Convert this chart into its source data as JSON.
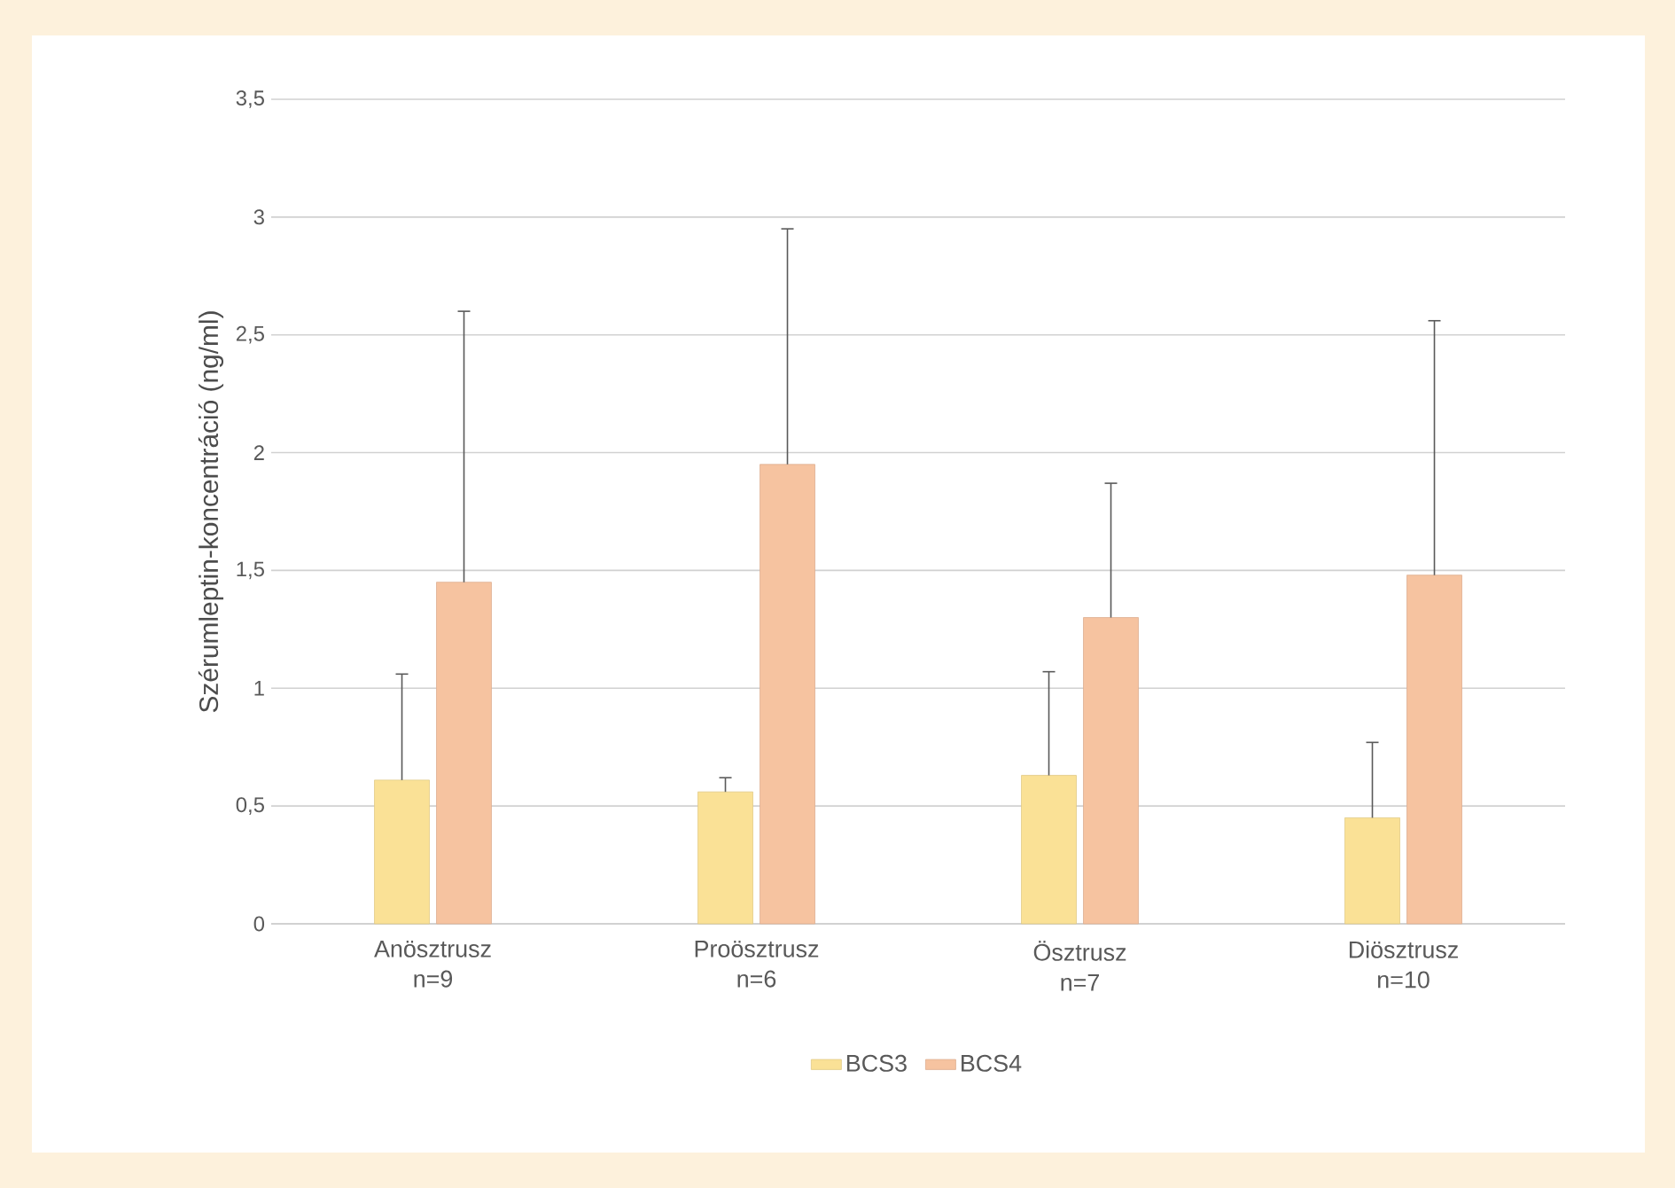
{
  "chart_data": {
    "type": "bar",
    "ylabel": "Szérumleptin-koncentráció  (ng/ml)",
    "categories": [
      "Anösztrusz n=9",
      "Proösztrusz n=6",
      "Ösztrusz n=7",
      "Diösztrusz n=10"
    ],
    "series": [
      {
        "name": "BCS3",
        "color": "#fae196",
        "values": [
          0.61,
          0.56,
          0.63,
          0.45
        ],
        "errors": [
          [
            0.61,
            1.06
          ],
          [
            0.56,
            0.62
          ],
          [
            0.63,
            1.07
          ],
          [
            0.45,
            0.77
          ]
        ]
      },
      {
        "name": "BCS4",
        "color": "#f6c3a0",
        "values": [
          1.45,
          1.95,
          1.3,
          1.48
        ],
        "errors": [
          [
            1.45,
            2.6
          ],
          [
            1.95,
            2.95
          ],
          [
            1.3,
            1.87
          ],
          [
            1.48,
            2.56
          ]
        ]
      }
    ],
    "ylim": [
      0,
      3.5
    ],
    "yticks": [
      0,
      {
        "value": 0.5,
        "label": "0,5"
      },
      1,
      {
        "value": 1.5,
        "label": "1,5"
      },
      2,
      {
        "value": 2.5,
        "label": "2,5"
      },
      3,
      {
        "value": 3.5,
        "label": "3,5"
      }
    ],
    "grid": "y",
    "legend": "bottom"
  }
}
